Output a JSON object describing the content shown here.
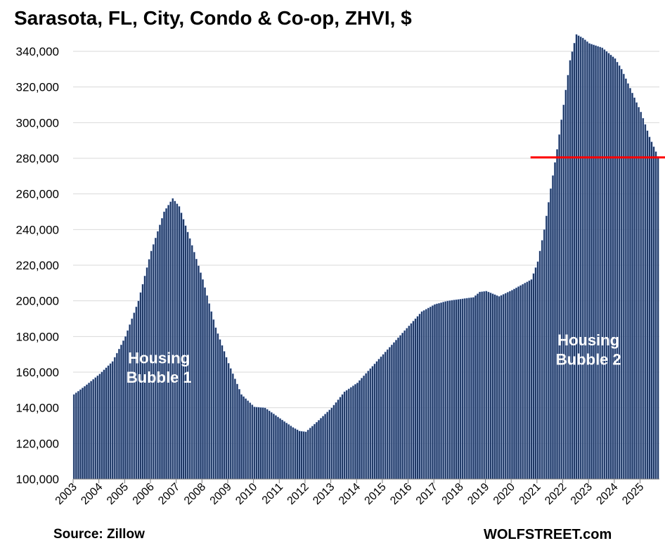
{
  "chart_data": {
    "type": "bar",
    "title": "Sarasota, FL, City, Condo & Co-op, ZHVI, $",
    "xlabel": "",
    "ylabel": "",
    "ylim": [
      100000,
      350000
    ],
    "yticks": [
      100000,
      120000,
      140000,
      160000,
      180000,
      200000,
      220000,
      240000,
      260000,
      280000,
      300000,
      320000,
      340000
    ],
    "ytick_labels": [
      "100,000",
      "120,000",
      "140,000",
      "160,000",
      "180,000",
      "200,000",
      "220,000",
      "240,000",
      "260,000",
      "280,000",
      "300,000",
      "320,000",
      "340,000"
    ],
    "xtick_labels": [
      "2003",
      "2004",
      "2005",
      "2006",
      "2007",
      "2008",
      "2009",
      "2010",
      "2011",
      "2012",
      "2013",
      "2014",
      "2015",
      "2016",
      "2017",
      "2018",
      "2019",
      "2020",
      "2021",
      "2022",
      "2023",
      "2024",
      "2025"
    ],
    "frequency": "monthly",
    "start": "2003-01",
    "end": "2025-09",
    "grid": true,
    "reference_line": {
      "value": 280500,
      "from": "2020-10",
      "color": "#ff0000"
    },
    "bar_color": "#1f3864",
    "annotations": [
      {
        "text": [
          "Housing",
          "Bubble 1"
        ],
        "x": "2006-05",
        "y": 165000
      },
      {
        "text": [
          "Housing",
          "Bubble 2"
        ],
        "x": "2023-01",
        "y": 175000
      }
    ],
    "anchors": [
      [
        "2003-01",
        147500
      ],
      [
        "2003-07",
        153000
      ],
      [
        "2004-01",
        159000
      ],
      [
        "2004-07",
        166000
      ],
      [
        "2005-01",
        180000
      ],
      [
        "2005-07",
        200000
      ],
      [
        "2006-01",
        228000
      ],
      [
        "2006-07",
        250000
      ],
      [
        "2006-11",
        257500
      ],
      [
        "2007-02",
        253000
      ],
      [
        "2007-07",
        235000
      ],
      [
        "2008-01",
        212000
      ],
      [
        "2008-07",
        185000
      ],
      [
        "2009-01",
        165000
      ],
      [
        "2009-07",
        147500
      ],
      [
        "2010-01",
        140500
      ],
      [
        "2010-06",
        140000
      ],
      [
        "2011-01",
        134000
      ],
      [
        "2011-07",
        129000
      ],
      [
        "2011-10",
        127000
      ],
      [
        "2012-01",
        126500
      ],
      [
        "2012-07",
        133000
      ],
      [
        "2013-01",
        140000
      ],
      [
        "2013-07",
        149000
      ],
      [
        "2014-01",
        154000
      ],
      [
        "2014-07",
        162000
      ],
      [
        "2015-01",
        170000
      ],
      [
        "2015-07",
        178000
      ],
      [
        "2016-01",
        186000
      ],
      [
        "2016-07",
        194000
      ],
      [
        "2017-01",
        198000
      ],
      [
        "2017-07",
        200000
      ],
      [
        "2018-01",
        201000
      ],
      [
        "2018-07",
        202000
      ],
      [
        "2018-10",
        205000
      ],
      [
        "2019-01",
        205500
      ],
      [
        "2019-07",
        202500
      ],
      [
        "2020-01",
        206000
      ],
      [
        "2020-07",
        210000
      ],
      [
        "2020-10",
        212000
      ],
      [
        "2021-01",
        222000
      ],
      [
        "2021-04",
        240000
      ],
      [
        "2021-07",
        263000
      ],
      [
        "2021-10",
        285000
      ],
      [
        "2022-01",
        310000
      ],
      [
        "2022-04",
        335000
      ],
      [
        "2022-07",
        349500
      ],
      [
        "2022-10",
        347500
      ],
      [
        "2023-01",
        344500
      ],
      [
        "2023-07",
        342000
      ],
      [
        "2024-01",
        336000
      ],
      [
        "2024-04",
        330000
      ],
      [
        "2024-07",
        322000
      ],
      [
        "2025-01",
        306000
      ],
      [
        "2025-05",
        292000
      ],
      [
        "2025-09",
        281000
      ]
    ]
  },
  "footer": {
    "source": "Source: Zillow",
    "brand": "WOLFSTREET.com"
  }
}
